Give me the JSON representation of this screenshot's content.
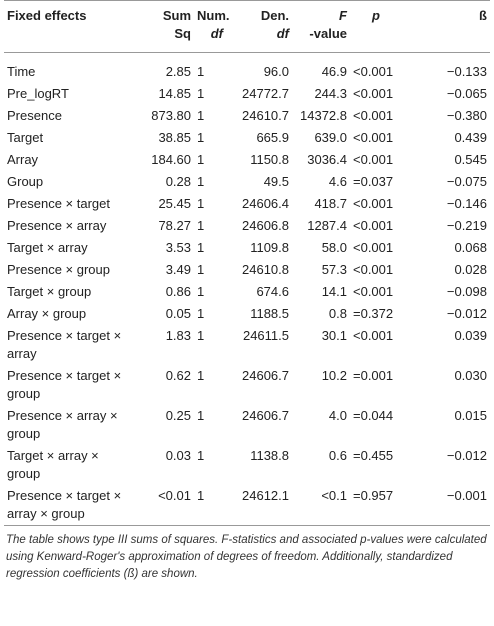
{
  "table": {
    "header": [
      [
        "Fixed effects"
      ],
      [
        "Sum",
        "Sq"
      ],
      [
        "Num.",
        "df"
      ],
      [
        "Den.",
        "df"
      ],
      [
        "F",
        "-value"
      ],
      [
        "p"
      ],
      [
        "ß"
      ]
    ],
    "rows": [
      [
        "Time",
        "2.85",
        "1",
        "96.0",
        "46.9",
        "<0.001",
        "−0.133"
      ],
      [
        "Pre_logRT",
        "14.85",
        "1",
        "24772.7",
        "244.3",
        "<0.001",
        "−0.065"
      ],
      [
        "Presence",
        "873.80",
        "1",
        "24610.7",
        "14372.8",
        "<0.001",
        "−0.380"
      ],
      [
        "Target",
        "38.85",
        "1",
        "665.9",
        "639.0",
        "<0.001",
        "0.439"
      ],
      [
        "Array",
        "184.60",
        "1",
        "1150.8",
        "3036.4",
        "<0.001",
        "0.545"
      ],
      [
        "Group",
        "0.28",
        "1",
        "49.5",
        "4.6",
        "=0.037",
        "−0.075"
      ],
      [
        "Presence × target",
        "25.45",
        "1",
        "24606.4",
        "418.7",
        "<0.001",
        "−0.146"
      ],
      [
        "Presence × array",
        "78.27",
        "1",
        "24606.8",
        "1287.4",
        "<0.001",
        "−0.219"
      ],
      [
        "Target × array",
        "3.53",
        "1",
        "1109.8",
        "58.0",
        "<0.001",
        "0.068"
      ],
      [
        "Presence × group",
        "3.49",
        "1",
        "24610.8",
        "57.3",
        "<0.001",
        "0.028"
      ],
      [
        "Target × group",
        "0.86",
        "1",
        "674.6",
        "14.1",
        "<0.001",
        "−0.098"
      ],
      [
        "Array × group",
        "0.05",
        "1",
        "1188.5",
        "0.8",
        "=0.372",
        "−0.012"
      ],
      [
        "Presence × target × array",
        "1.83",
        "1",
        "24611.5",
        "30.1",
        "<0.001",
        "0.039"
      ],
      [
        "Presence × target × group",
        "0.62",
        "1",
        "24606.7",
        "10.2",
        "=0.001",
        "0.030"
      ],
      [
        "Presence × array × group",
        "0.25",
        "1",
        "24606.7",
        "4.0",
        "=0.044",
        "0.015"
      ],
      [
        "Target × array × group",
        "0.03",
        "1",
        "1138.8",
        "0.6",
        "=0.455",
        "−0.012"
      ],
      [
        "Presence × target × array × group",
        "<0.01",
        "1",
        "24612.1",
        "<0.1",
        "=0.957",
        "−0.001"
      ]
    ],
    "footnote": "The table shows type III sums of squares. F-statistics and associated p-values were calculated using Kenward-Roger's approximation of degrees of freedom. Additionally, standardized regression coefficients (ß) are shown."
  }
}
